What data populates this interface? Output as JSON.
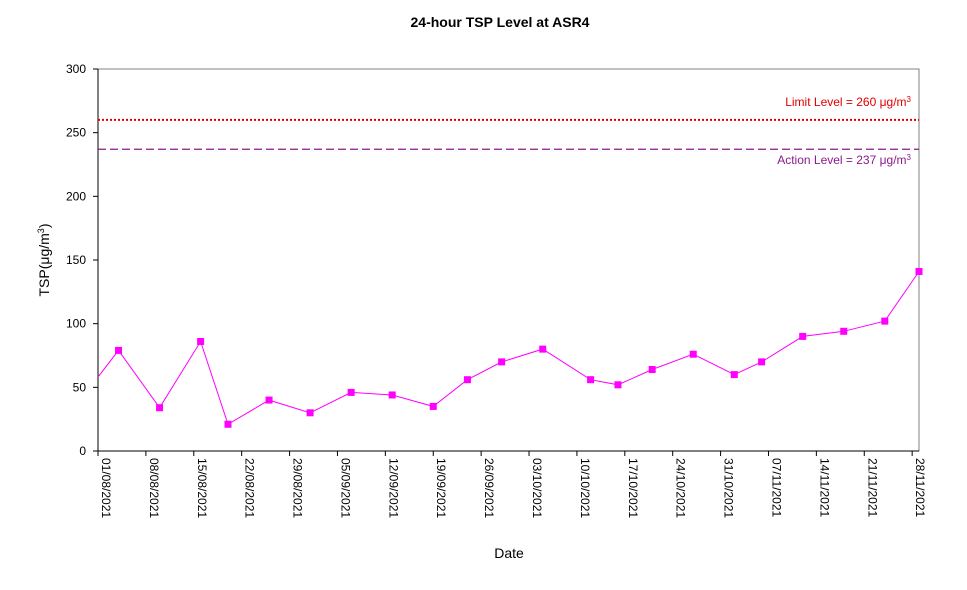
{
  "chart_data": {
    "type": "line",
    "title": "24-hour TSP Level at ASR4",
    "xlabel": "Date",
    "ylabel": "TSP(μg/m3)",
    "ylabel_parts": {
      "main": "TSP(",
      "mu": "μ",
      "unit": "g/m",
      "sup": "3",
      "close": ")"
    },
    "ylim": [
      0,
      300
    ],
    "yticks": [
      0,
      50,
      100,
      150,
      200,
      250,
      300
    ],
    "xticks": [
      "01/08/2021",
      "08/08/2021",
      "15/08/2021",
      "22/08/2021",
      "29/08/2021",
      "05/09/2021",
      "12/09/2021",
      "19/09/2021",
      "26/09/2021",
      "03/10/2021",
      "10/10/2021",
      "17/10/2021",
      "24/10/2021",
      "31/10/2021",
      "07/11/2021",
      "14/11/2021",
      "21/11/2021",
      "28/11/2021"
    ],
    "x_range": [
      "2021-08-01",
      "2021-11-29"
    ],
    "grid": false,
    "series": [
      {
        "color": "#ff00ff",
        "points": [
          {
            "x": "2021-08-01",
            "y": 58
          },
          {
            "x": "2021-08-04",
            "y": 79
          },
          {
            "x": "2021-08-10",
            "y": 34
          },
          {
            "x": "2021-08-16",
            "y": 86
          },
          {
            "x": "2021-08-20",
            "y": 21
          },
          {
            "x": "2021-08-26",
            "y": 40
          },
          {
            "x": "2021-09-01",
            "y": 30
          },
          {
            "x": "2021-09-07",
            "y": 46
          },
          {
            "x": "2021-09-13",
            "y": 44
          },
          {
            "x": "2021-09-19",
            "y": 35
          },
          {
            "x": "2021-09-24",
            "y": 56
          },
          {
            "x": "2021-09-29",
            "y": 70
          },
          {
            "x": "2021-10-05",
            "y": 80
          },
          {
            "x": "2021-10-12",
            "y": 56
          },
          {
            "x": "2021-10-16",
            "y": 52
          },
          {
            "x": "2021-10-21",
            "y": 64
          },
          {
            "x": "2021-10-27",
            "y": 76
          },
          {
            "x": "2021-11-02",
            "y": 60
          },
          {
            "x": "2021-11-06",
            "y": 70
          },
          {
            "x": "2021-11-12",
            "y": 90
          },
          {
            "x": "2021-11-18",
            "y": 94
          },
          {
            "x": "2021-11-24",
            "y": 102
          },
          {
            "x": "2021-11-29",
            "y": 141
          }
        ]
      }
    ],
    "reference_lines": [
      {
        "name": "limit",
        "value": 260,
        "label": "Limit Level  = 260 μg/m3",
        "label_parts": {
          "text": "Limit Level  = 260 ",
          "mu": "μ",
          "unit": "g/m",
          "sup": "3"
        },
        "color": "#e00000",
        "style": "dotted",
        "label_position": "above"
      },
      {
        "name": "action",
        "value": 237,
        "label": "Action Level  = 237 μg/m3",
        "label_parts": {
          "text": "Action Level  = 237 ",
          "mu": "μ",
          "unit": "g/m",
          "sup": "3"
        },
        "color": "#8b1a8b",
        "style": "dashed",
        "label_position": "below"
      }
    ]
  }
}
